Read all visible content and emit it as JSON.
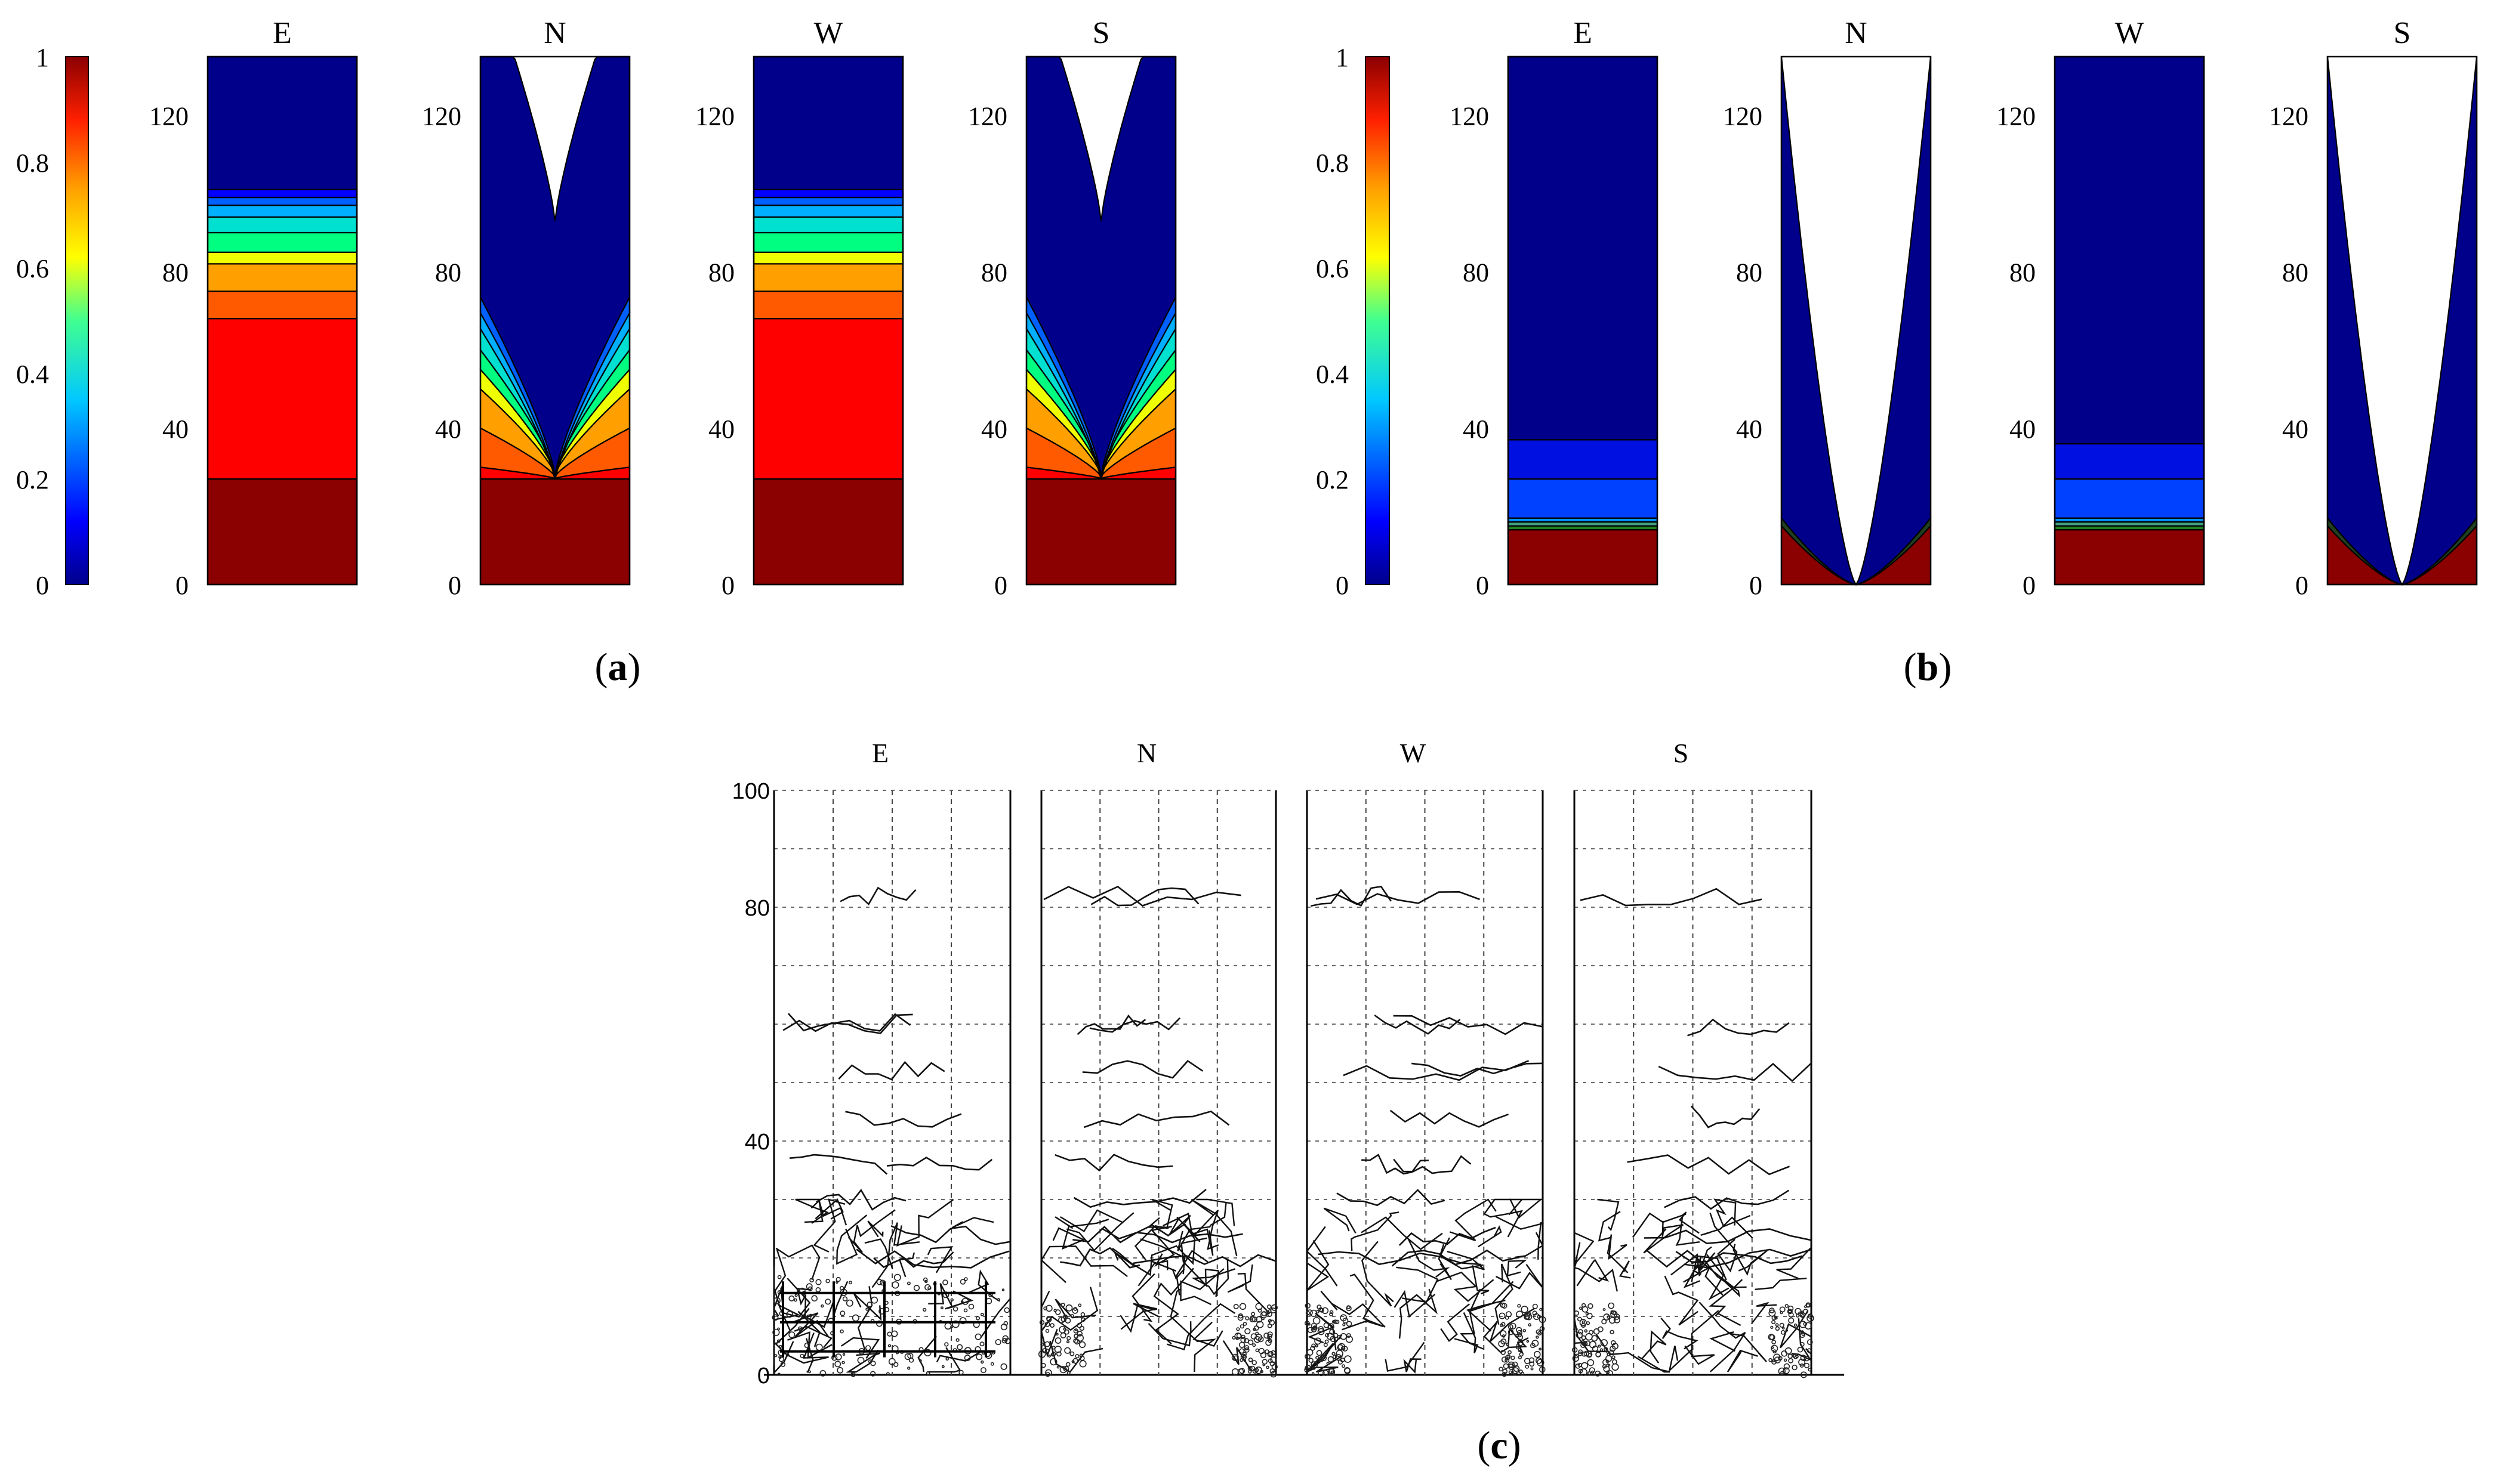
{
  "figure": {
    "panels": [
      {
        "label": "(a)",
        "label_letter": "a",
        "colorbar": {
          "ticks": [
            "0",
            "0.2",
            "0.4",
            "0.6",
            "0.8",
            "1"
          ]
        },
        "y_ticks": [
          "0",
          "40",
          "80",
          "120"
        ],
        "y_max": 135,
        "walls": [
          {
            "title": "E",
            "profile": "flat",
            "levels": [
              [
                0,
                27,
                "#8b0000"
              ],
              [
                27,
                68,
                "#ff0000"
              ],
              [
                68,
                75,
                "#ff5a00"
              ],
              [
                75,
                82,
                "#ffa000"
              ],
              [
                82,
                85,
                "#f0ff00"
              ],
              [
                85,
                90,
                "#00ff80"
              ],
              [
                90,
                94,
                "#00e0d0"
              ],
              [
                94,
                97,
                "#00b0ff"
              ],
              [
                97,
                99,
                "#0060ff"
              ],
              [
                99,
                101,
                "#0000ff"
              ],
              [
                101,
                135,
                "#00008b"
              ]
            ]
          },
          {
            "title": "N",
            "profile": "funnel",
            "levels": [
              [
                0,
                27,
                "#8b0000"
              ],
              [
                27,
                30,
                "#ff0000"
              ],
              [
                30,
                40,
                "#ff5a00"
              ],
              [
                40,
                50,
                "#ffa000"
              ],
              [
                50,
                55,
                "#f0ff00"
              ],
              [
                55,
                60,
                "#00ff80"
              ],
              [
                60,
                64,
                "#00e0d0"
              ],
              [
                64,
                67,
                "#00b0ff"
              ],
              [
                67,
                70,
                "#0060ff"
              ],
              [
                70,
                135,
                "#00008b"
              ]
            ]
          },
          {
            "title": "W",
            "profile": "flat",
            "levels": [
              [
                0,
                27,
                "#8b0000"
              ],
              [
                27,
                68,
                "#ff0000"
              ],
              [
                68,
                75,
                "#ff5a00"
              ],
              [
                75,
                82,
                "#ffa000"
              ],
              [
                82,
                85,
                "#f0ff00"
              ],
              [
                85,
                90,
                "#00ff80"
              ],
              [
                90,
                94,
                "#00e0d0"
              ],
              [
                94,
                97,
                "#00b0ff"
              ],
              [
                97,
                99,
                "#0060ff"
              ],
              [
                99,
                101,
                "#0000ff"
              ],
              [
                101,
                135,
                "#00008b"
              ]
            ]
          },
          {
            "title": "S",
            "profile": "funnel",
            "levels": [
              [
                0,
                27,
                "#8b0000"
              ],
              [
                27,
                30,
                "#ff0000"
              ],
              [
                30,
                40,
                "#ff5a00"
              ],
              [
                40,
                50,
                "#ffa000"
              ],
              [
                50,
                55,
                "#f0ff00"
              ],
              [
                55,
                60,
                "#00ff80"
              ],
              [
                60,
                64,
                "#00e0d0"
              ],
              [
                64,
                67,
                "#00b0ff"
              ],
              [
                67,
                70,
                "#0060ff"
              ],
              [
                70,
                135,
                "#00008b"
              ]
            ]
          }
        ]
      },
      {
        "label": "(b)",
        "label_letter": "b",
        "colorbar": {
          "ticks": [
            "0",
            "0.2",
            "0.4",
            "0.6",
            "0.8",
            "1"
          ]
        },
        "y_ticks": [
          "0",
          "40",
          "80",
          "120"
        ],
        "y_max": 135,
        "walls": [
          {
            "title": "E",
            "profile": "flat",
            "levels": [
              [
                0,
                14,
                "#8b0000"
              ],
              [
                14,
                15,
                "#208020"
              ],
              [
                15,
                16,
                "#40a080"
              ],
              [
                16,
                17,
                "#0090ff"
              ],
              [
                17,
                27,
                "#0040ff"
              ],
              [
                27,
                37,
                "#0010e0"
              ],
              [
                37,
                135,
                "#00008b"
              ]
            ]
          },
          {
            "title": "N",
            "profile": "bowl",
            "levels": [
              [
                0,
                15,
                "#8b0000"
              ],
              [
                15,
                17,
                "#204020"
              ],
              [
                17,
                135,
                "#00008b"
              ]
            ]
          },
          {
            "title": "W",
            "profile": "flat",
            "levels": [
              [
                0,
                14,
                "#8b0000"
              ],
              [
                14,
                15,
                "#208020"
              ],
              [
                15,
                16,
                "#40a080"
              ],
              [
                16,
                17,
                "#0090ff"
              ],
              [
                17,
                27,
                "#0040ff"
              ],
              [
                27,
                36,
                "#0010e0"
              ],
              [
                36,
                135,
                "#00008b"
              ]
            ]
          },
          {
            "title": "S",
            "profile": "bowl",
            "levels": [
              [
                0,
                15,
                "#8b0000"
              ],
              [
                15,
                17,
                "#204020"
              ],
              [
                17,
                135,
                "#00008b"
              ]
            ]
          }
        ]
      },
      {
        "label": "(c)",
        "label_letter": "c",
        "y_ticks": [
          "0",
          "40",
          "80",
          "100"
        ],
        "y_max": 100,
        "walls": [
          {
            "title": "E"
          },
          {
            "title": "N"
          },
          {
            "title": "W"
          },
          {
            "title": "S"
          }
        ]
      }
    ]
  }
}
